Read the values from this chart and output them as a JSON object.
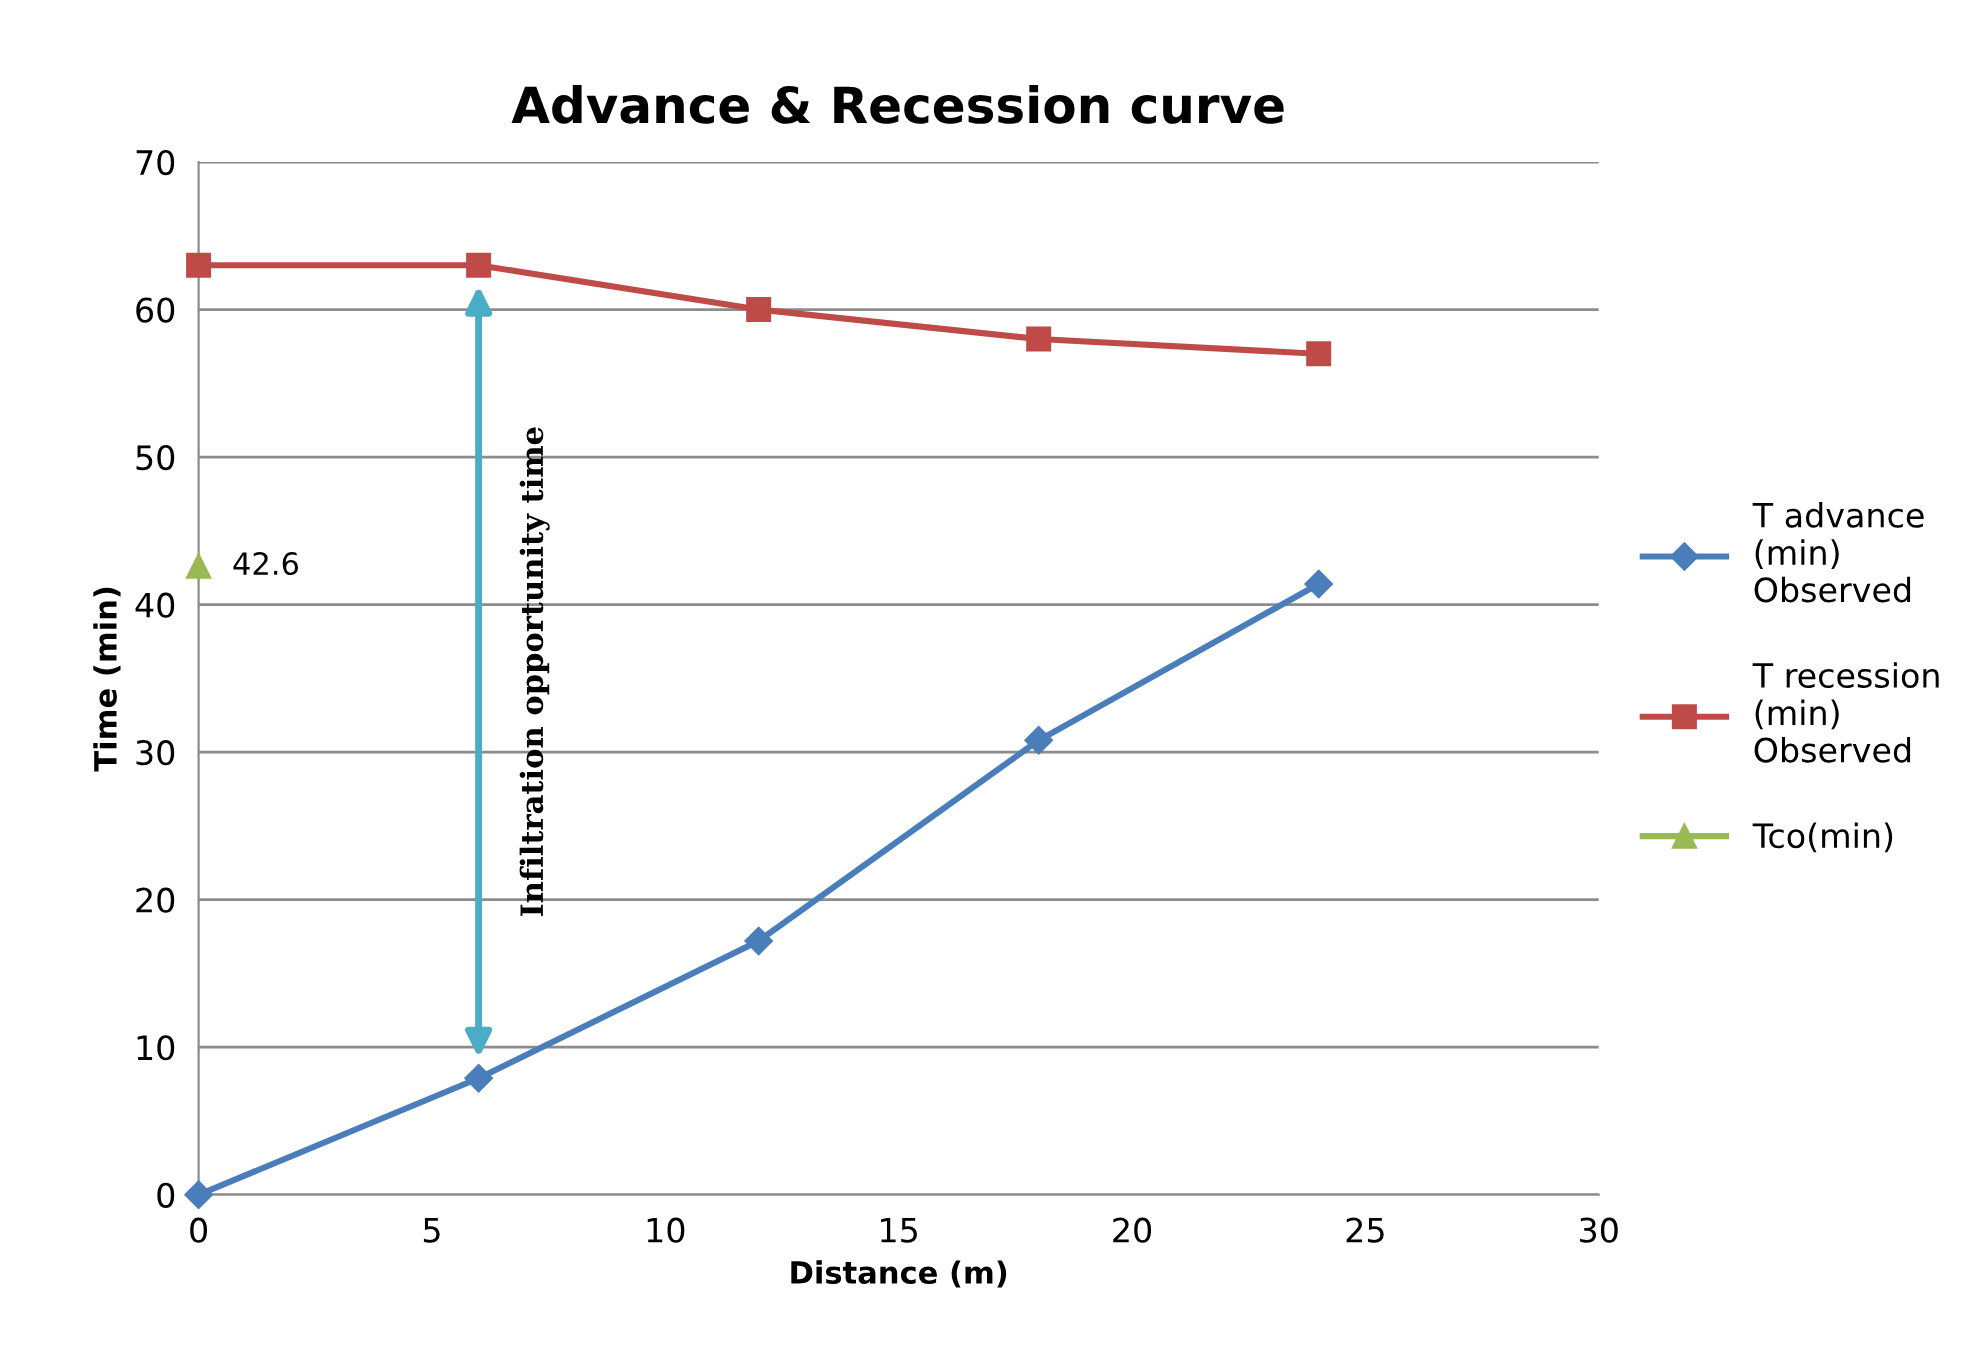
{
  "chart_data": {
    "type": "line",
    "title": "Advance & Recession curve",
    "xlabel": "Distance (m)",
    "ylabel": "Time (min)",
    "series": [
      {
        "name": "T advance (min) Observed",
        "color": "#4a7ebb",
        "marker": "diamond",
        "x": [
          0,
          6,
          12,
          18,
          24
        ],
        "values": [
          0,
          7.9,
          17.2,
          30.8,
          41.4
        ]
      },
      {
        "name": "T recession (min) Observed",
        "color": "#be4b48",
        "marker": "square",
        "x": [
          0,
          6,
          12,
          18,
          24
        ],
        "values": [
          63,
          63,
          60,
          58,
          57
        ]
      },
      {
        "name": "Tco(min)",
        "color": "#98b954",
        "marker": "triangle",
        "x": [
          0
        ],
        "values": [
          42.6
        ],
        "value_labels": [
          "42.6"
        ]
      }
    ],
    "annotations": [
      "Infiltration opportunity time"
    ],
    "xlim": [
      0,
      30
    ],
    "xticks": [
      0,
      5,
      10,
      15,
      20,
      25,
      30
    ],
    "ylim": [
      0,
      70
    ],
    "yticks": [
      0,
      10,
      20,
      30,
      40,
      50,
      60,
      70
    ],
    "grid": "y",
    "legend": "right",
    "line_style": "solid"
  }
}
